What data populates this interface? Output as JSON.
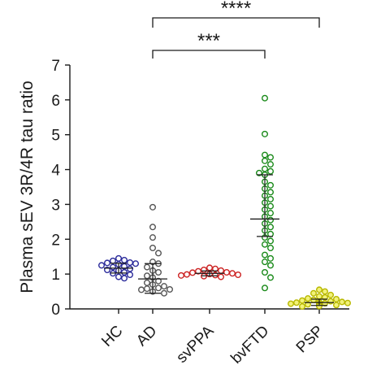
{
  "chart_data": {
    "type": "scatter",
    "title": "",
    "xlabel": "",
    "ylabel": "Plasma sEV 3R/4R tau ratio",
    "ylim": [
      0,
      7
    ],
    "yticks": [
      "0",
      "1",
      "2",
      "3",
      "4",
      "5",
      "6",
      "7"
    ],
    "grid": false,
    "categories": [
      "HC",
      "AD",
      "svPPA",
      "bvFTD",
      "PSP"
    ],
    "groups": [
      {
        "name": "HC",
        "color": "#2b2b9b",
        "fill": "#ffffff",
        "mean": 1.17,
        "sd": [
          1.03,
          1.31
        ],
        "values": [
          1.45,
          1.4,
          1.38,
          1.33,
          1.32,
          1.3,
          1.28,
          1.25,
          1.22,
          1.2,
          1.15,
          1.12,
          1.1,
          1.05,
          1.02,
          0.98,
          0.92,
          0.88
        ]
      },
      {
        "name": "AD",
        "color": "#555555",
        "fill": "#ffffff",
        "mean": 0.86,
        "sd": [
          0.45,
          1.3
        ],
        "values": [
          2.92,
          2.35,
          2.05,
          1.75,
          1.6,
          1.35,
          1.3,
          1.2,
          1.1,
          1.05,
          0.95,
          0.9,
          0.8,
          0.75,
          0.7,
          0.65,
          0.6,
          0.58,
          0.56,
          0.55,
          0.5,
          0.45
        ]
      },
      {
        "name": "svPPA",
        "color": "#cc2222",
        "fill": "#ffffff",
        "mean": 1.02,
        "sd": [
          0.95,
          1.09
        ],
        "values": [
          1.18,
          1.15,
          1.12,
          1.1,
          1.08,
          1.05,
          1.04,
          1.02,
          1.0,
          0.99,
          0.98,
          0.97,
          0.96,
          0.94,
          0.92
        ]
      },
      {
        "name": "bvFTD",
        "color": "#1a8a1a",
        "fill": "#ffffff",
        "mean": 2.58,
        "sd": [
          2.08,
          3.85
        ],
        "values": [
          6.05,
          5.02,
          4.42,
          4.35,
          4.25,
          4.15,
          4.02,
          3.95,
          3.9,
          3.85,
          3.65,
          3.55,
          3.45,
          3.35,
          3.25,
          3.15,
          3.05,
          2.95,
          2.85,
          2.75,
          2.65,
          2.55,
          2.45,
          2.35,
          2.25,
          2.15,
          2.05,
          1.95,
          1.85,
          1.75,
          1.55,
          1.45,
          1.35,
          1.25,
          1.05,
          0.9,
          0.6
        ]
      },
      {
        "name": "PSP",
        "color": "#b8b800",
        "fill": "#f2f27a",
        "mean": 0.18,
        "sd": [
          0.1,
          0.28
        ],
        "values": [
          0.55,
          0.5,
          0.45,
          0.4,
          0.36,
          0.33,
          0.3,
          0.28,
          0.26,
          0.24,
          0.22,
          0.2,
          0.19,
          0.18,
          0.17,
          0.16,
          0.15,
          0.14,
          0.13,
          0.12,
          0.11,
          0.1,
          0.09,
          0.08,
          0.07
        ]
      }
    ],
    "comparisons": [
      {
        "from": "AD",
        "to": "bvFTD",
        "label": "***"
      },
      {
        "from": "AD",
        "to": "PSP",
        "label": "****"
      }
    ]
  }
}
